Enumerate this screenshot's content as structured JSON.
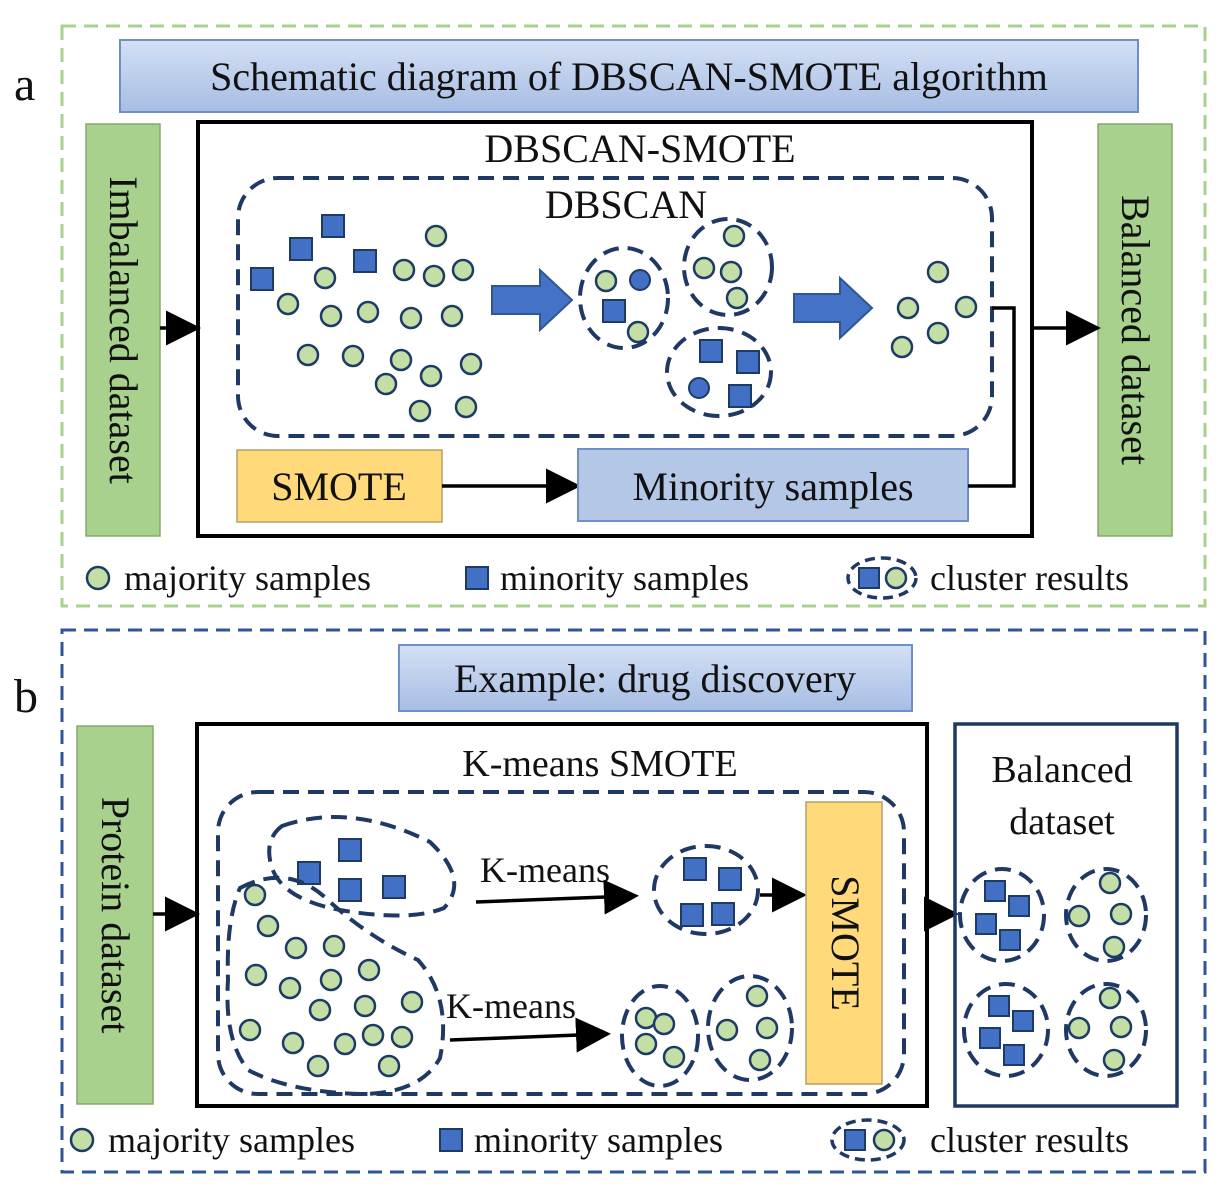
{
  "panel_a": {
    "letter": "a",
    "title": "Schematic diagram of DBSCAN-SMOTE algorithm",
    "input_label": "Imbalanced dataset",
    "output_label": "Balanced dataset",
    "method_label": "DBSCAN-SMOTE",
    "inner_label": "DBSCAN",
    "smote_label": "SMOTE",
    "minority_label": "Minority samples",
    "legend": {
      "majority": "majority samples",
      "minority": "minority samples",
      "cluster": "cluster results"
    }
  },
  "panel_b": {
    "letter": "b",
    "title": "Example: drug discovery",
    "input_label": "Protein dataset",
    "method_label": "K-means SMOTE",
    "kmeans_top": "K-means",
    "kmeans_bottom": "K-means",
    "smote_label": "SMOTE",
    "output_line1": "Balanced",
    "output_line2": "dataset",
    "legend": {
      "majority": "majority samples",
      "minority": "minority samples",
      "cluster": "cluster results"
    }
  },
  "colors": {
    "majority_fill": "#c3dfa6",
    "minority_fill": "#4170c4",
    "label_box_green": "#a9d18e",
    "title_box_blue": "#b4c7e7",
    "smote_box_yellow": "#ffd97a",
    "panel_a_border": "#a9d18e",
    "panel_b_border": "#2f5597"
  }
}
